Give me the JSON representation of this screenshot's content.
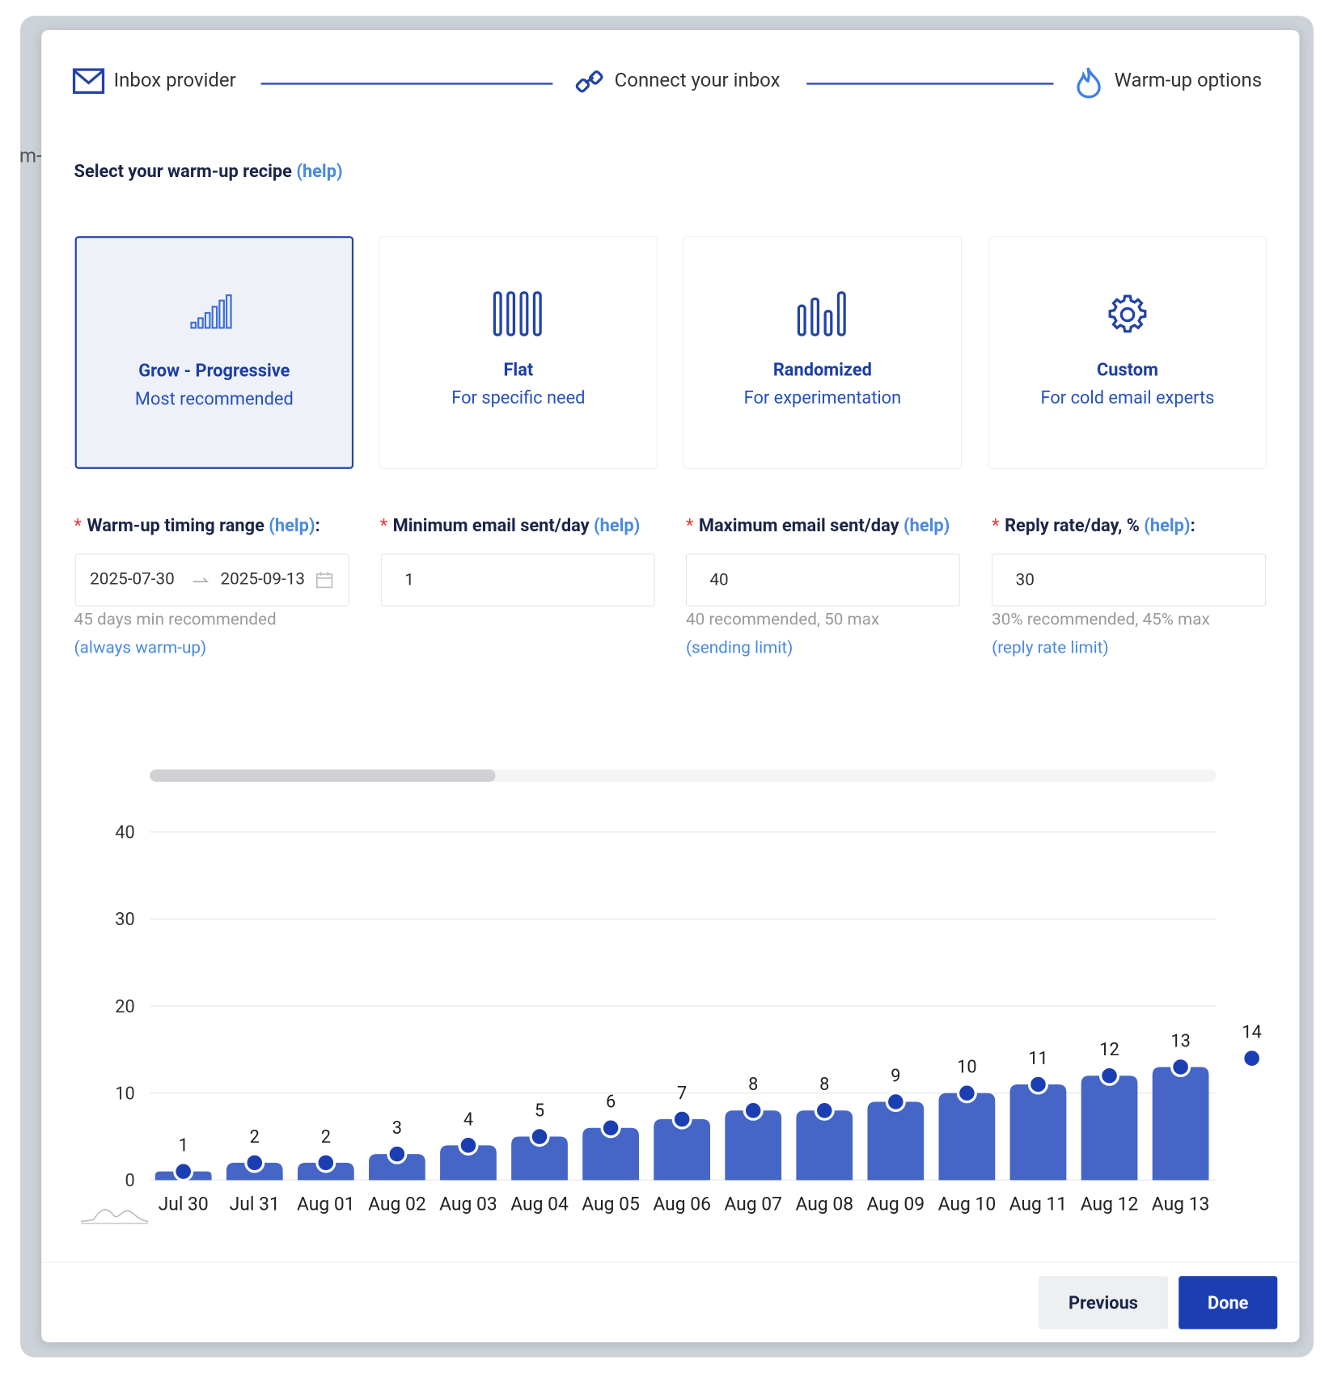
{
  "background_fragment": "m-",
  "steps": [
    "Inbox provider",
    "Connect your inbox",
    "Warm-up options"
  ],
  "recipe_heading": {
    "text": "Select your warm-up recipe",
    "help": "(help)"
  },
  "recipes": [
    {
      "title": "Grow - Progressive",
      "subtitle": "Most recommended"
    },
    {
      "title": "Flat",
      "subtitle": "For specific need"
    },
    {
      "title": "Randomized",
      "subtitle": "For experimentation"
    },
    {
      "title": "Custom",
      "subtitle": "For cold email experts"
    }
  ],
  "required_mark": "*",
  "label_suffix": ":",
  "fields": [
    {
      "label": "Warm-up timing range",
      "help": "(help)",
      "start": "2025-07-30",
      "end": "2025-09-13",
      "hint": "45 days min recommended",
      "link": "(always warm-up)"
    },
    {
      "label": "Minimum email sent/day",
      "help": "(help)",
      "value": "1"
    },
    {
      "label": "Maximum email sent/day",
      "help": "(help)",
      "value": "40",
      "hint": "40 recommended, 50 max",
      "link": "(sending limit)"
    },
    {
      "label": "Reply rate/day, %",
      "help": "(help)",
      "value": "30",
      "hint": "30% recommended, 45% max",
      "link": "(reply rate limit)"
    }
  ],
  "buttons": [
    "Previous",
    "Done"
  ],
  "chart_data": {
    "type": "bar",
    "categories": [
      "Jul 30",
      "Jul 31",
      "Aug 01",
      "Aug 02",
      "Aug 03",
      "Aug 04",
      "Aug 05",
      "Aug 06",
      "Aug 07",
      "Aug 08",
      "Aug 09",
      "Aug 10",
      "Aug 11",
      "Aug 12",
      "Aug 13",
      null
    ],
    "series": [
      {
        "type": "bar",
        "color": "#4566c7",
        "values": [
          1,
          2,
          2,
          3,
          4,
          5,
          6,
          7,
          8,
          8,
          9,
          10,
          11,
          12,
          13,
          null
        ]
      },
      {
        "type": "scatter",
        "color": "#1b3fb3",
        "values": [
          1,
          2,
          2,
          3,
          4,
          5,
          6,
          7,
          8,
          8,
          9,
          10,
          11,
          12,
          13,
          14
        ]
      }
    ],
    "ylim": [
      0,
      40
    ],
    "yticks": [
      0,
      10,
      20,
      30,
      40
    ],
    "grid": true
  }
}
